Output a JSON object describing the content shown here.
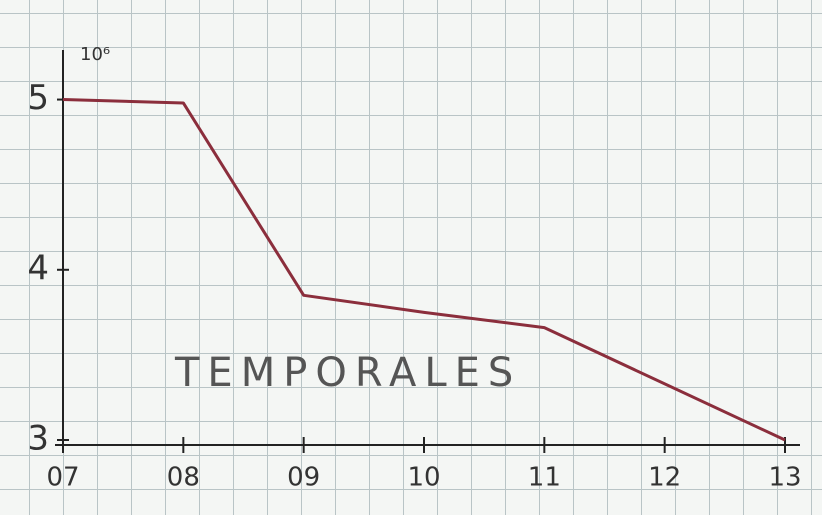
{
  "chart_data": {
    "type": "line",
    "y_unit_label": "10⁶",
    "annotation": "TEMPORALES",
    "x": [
      7,
      8,
      9,
      10,
      11,
      13
    ],
    "series": [
      {
        "color": "#8b2e3c",
        "values": [
          5.0,
          4.98,
          3.85,
          3.75,
          3.66,
          3.0
        ]
      }
    ],
    "xlim": [
      7,
      13
    ],
    "xticks": [
      {
        "value": 7,
        "label": "07"
      },
      {
        "value": 8,
        "label": "08"
      },
      {
        "value": 9,
        "label": "09"
      },
      {
        "value": 10,
        "label": "10"
      },
      {
        "value": 11,
        "label": "11"
      },
      {
        "value": 12,
        "label": "12"
      },
      {
        "value": 13,
        "label": "13"
      }
    ],
    "ylim": [
      3,
      5.25
    ],
    "yticks": [
      3,
      4,
      5
    ]
  }
}
